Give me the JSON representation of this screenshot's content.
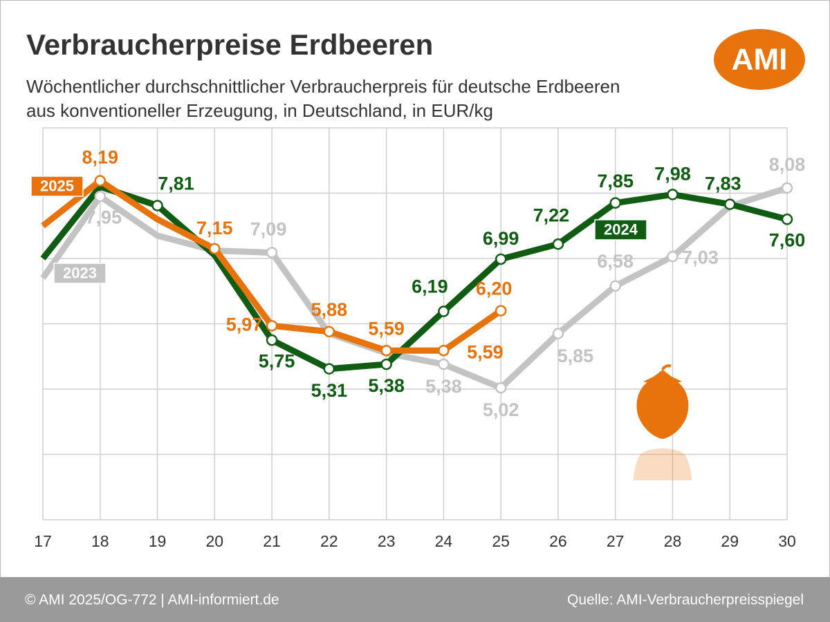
{
  "chart_data": {
    "type": "line",
    "title": "Verbraucherpreise Erdbeeren",
    "subtitle": [
      "Wöchentlicher durchschnittlicher Verbraucherpreis für deutsche Erdbeeren",
      "aus konventioneller Erzeugung, in Deutschland, in EUR/kg"
    ],
    "logo": "AMI",
    "footer_left": "© AMI 2025/OG-772 | AMI-informiert.de",
    "footer_right": "Quelle: AMI-Verbraucherpreisspiegel",
    "x": [
      17,
      18,
      19,
      20,
      21,
      22,
      23,
      24,
      25,
      26,
      27,
      28,
      29,
      30
    ],
    "xlim": [
      17,
      30
    ],
    "xticks": [
      17,
      18,
      19,
      20,
      21,
      22,
      23,
      24,
      25,
      26,
      27,
      28,
      29,
      30
    ],
    "ylim": [
      3,
      9
    ],
    "yticks": [
      3,
      4,
      5,
      6,
      7,
      8,
      9
    ],
    "grid": true,
    "series": [
      {
        "name": "2023",
        "color": "#c3c3c3",
        "values": [
          6.7,
          7.95,
          7.35,
          7.12,
          7.09,
          5.85,
          5.55,
          5.38,
          5.02,
          5.85,
          6.58,
          7.03,
          7.8,
          8.08
        ],
        "value_labels": [
          null,
          "7,95",
          null,
          null,
          "7,09",
          null,
          null,
          "5,38",
          "5,02",
          "5,85",
          "6,58",
          "7,03",
          null,
          "8,08"
        ]
      },
      {
        "name": "2024",
        "color": "#0f5c12",
        "values": [
          7.0,
          8.1,
          7.81,
          7.05,
          5.75,
          5.31,
          5.38,
          6.19,
          6.99,
          7.22,
          7.85,
          7.98,
          7.83,
          7.6
        ],
        "value_labels": [
          null,
          null,
          "7,81",
          null,
          "5,75",
          "5,31",
          "5,38",
          "6,19",
          "6,99",
          "7,22",
          "7,85",
          "7,98",
          "7,83",
          "7,60"
        ]
      },
      {
        "name": "2025",
        "color": "#e8730c",
        "values": [
          7.5,
          8.19,
          7.6,
          7.15,
          5.97,
          5.88,
          5.59,
          5.59,
          6.2,
          null,
          null,
          null,
          null,
          null
        ],
        "value_labels": [
          null,
          "8,19",
          null,
          "7,15",
          "5,97",
          "5,88",
          "5,59",
          "5,59",
          "6,20",
          null,
          null,
          null,
          null,
          null
        ]
      }
    ]
  }
}
